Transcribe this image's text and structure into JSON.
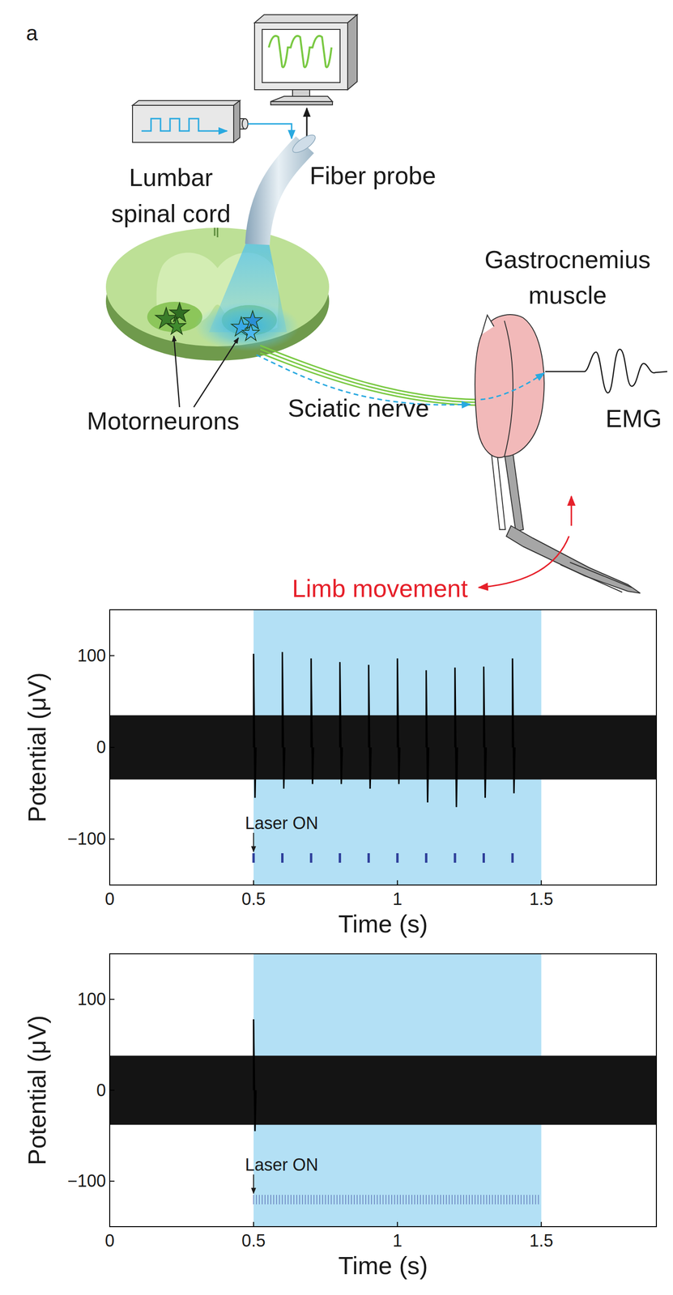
{
  "panel_label": "a",
  "diagram": {
    "lumbar_spinal_cord": [
      "Lumbar",
      "spinal cord"
    ],
    "fiber_probe": "Fiber probe",
    "gastrocnemius_muscle": [
      "Gastrocnemius",
      "muscle"
    ],
    "motorneurons": "Motorneurons",
    "sciatic_nerve": "Sciatic nerve",
    "emg": "EMG",
    "limb_movement": "Limb movement"
  },
  "chart_data": [
    {
      "type": "line",
      "x_label": "Time (s)",
      "y_label": "Potential (μV)",
      "xlim": [
        0,
        1.9
      ],
      "ylim": [
        -150,
        150
      ],
      "xticks": [
        0,
        0.5,
        1,
        1.5
      ],
      "yticks": [
        {
          "value": -100,
          "label": "−100"
        },
        0,
        100
      ],
      "grid": false,
      "laser_on": [
        0.5,
        1.5
      ],
      "annotation": {
        "text": "Laser ON",
        "x": 0.5
      },
      "noise_band": [
        -35,
        35
      ],
      "spikes": {
        "x": [
          0.5,
          0.6,
          0.7,
          0.8,
          0.9,
          1.0,
          1.1,
          1.2,
          1.3,
          1.4
        ],
        "peaks": [
          102,
          104,
          97,
          93,
          90,
          97,
          84,
          87,
          88,
          97
        ],
        "troughs": [
          -55,
          -45,
          -40,
          -40,
          -45,
          -40,
          -60,
          -65,
          -55,
          -50
        ]
      },
      "pulses": [
        0.5,
        0.6,
        0.7,
        0.8,
        0.9,
        1.0,
        1.1,
        1.2,
        1.3,
        1.4
      ]
    },
    {
      "type": "line",
      "x_label": "Time (s)",
      "y_label": "Potential (μV)",
      "xlim": [
        0,
        1.9
      ],
      "ylim": [
        -150,
        150
      ],
      "xticks": [
        0,
        0.5,
        1,
        1.5
      ],
      "yticks": [
        {
          "value": -100,
          "label": "−100"
        },
        0,
        100
      ],
      "grid": false,
      "laser_on": [
        0.5,
        1.5
      ],
      "annotation": {
        "text": "Laser ON",
        "x": 0.5
      },
      "noise_band": [
        -38,
        38
      ],
      "spikes": {
        "x": [
          0.5
        ],
        "peaks": [
          78
        ],
        "troughs": [
          -45
        ]
      },
      "pulses": [
        0.5,
        0.51,
        0.52,
        0.53,
        0.54,
        0.55,
        0.56,
        0.57,
        0.58,
        0.59,
        0.6,
        0.61,
        0.62,
        0.63,
        0.64,
        0.65,
        0.66,
        0.67,
        0.68,
        0.69,
        0.7,
        0.71,
        0.72,
        0.73,
        0.74,
        0.75,
        0.76,
        0.77,
        0.78,
        0.79,
        0.8,
        0.81,
        0.82,
        0.83,
        0.84,
        0.85,
        0.86,
        0.87,
        0.88,
        0.89,
        0.9,
        0.91,
        0.92,
        0.93,
        0.94,
        0.95,
        0.96,
        0.97,
        0.98,
        0.99,
        1,
        1.01,
        1.02,
        1.03,
        1.04,
        1.05,
        1.06,
        1.07,
        1.08,
        1.09,
        1.1,
        1.11,
        1.12,
        1.13,
        1.14,
        1.15,
        1.16,
        1.17,
        1.18,
        1.19,
        1.2,
        1.21,
        1.22,
        1.23,
        1.24,
        1.25,
        1.26,
        1.27,
        1.28,
        1.29,
        1.3,
        1.31,
        1.32,
        1.33,
        1.34,
        1.35,
        1.36,
        1.37,
        1.38,
        1.39,
        1.4,
        1.41,
        1.42,
        1.43,
        1.44,
        1.45,
        1.46,
        1.47,
        1.48,
        1.49
      ]
    }
  ]
}
